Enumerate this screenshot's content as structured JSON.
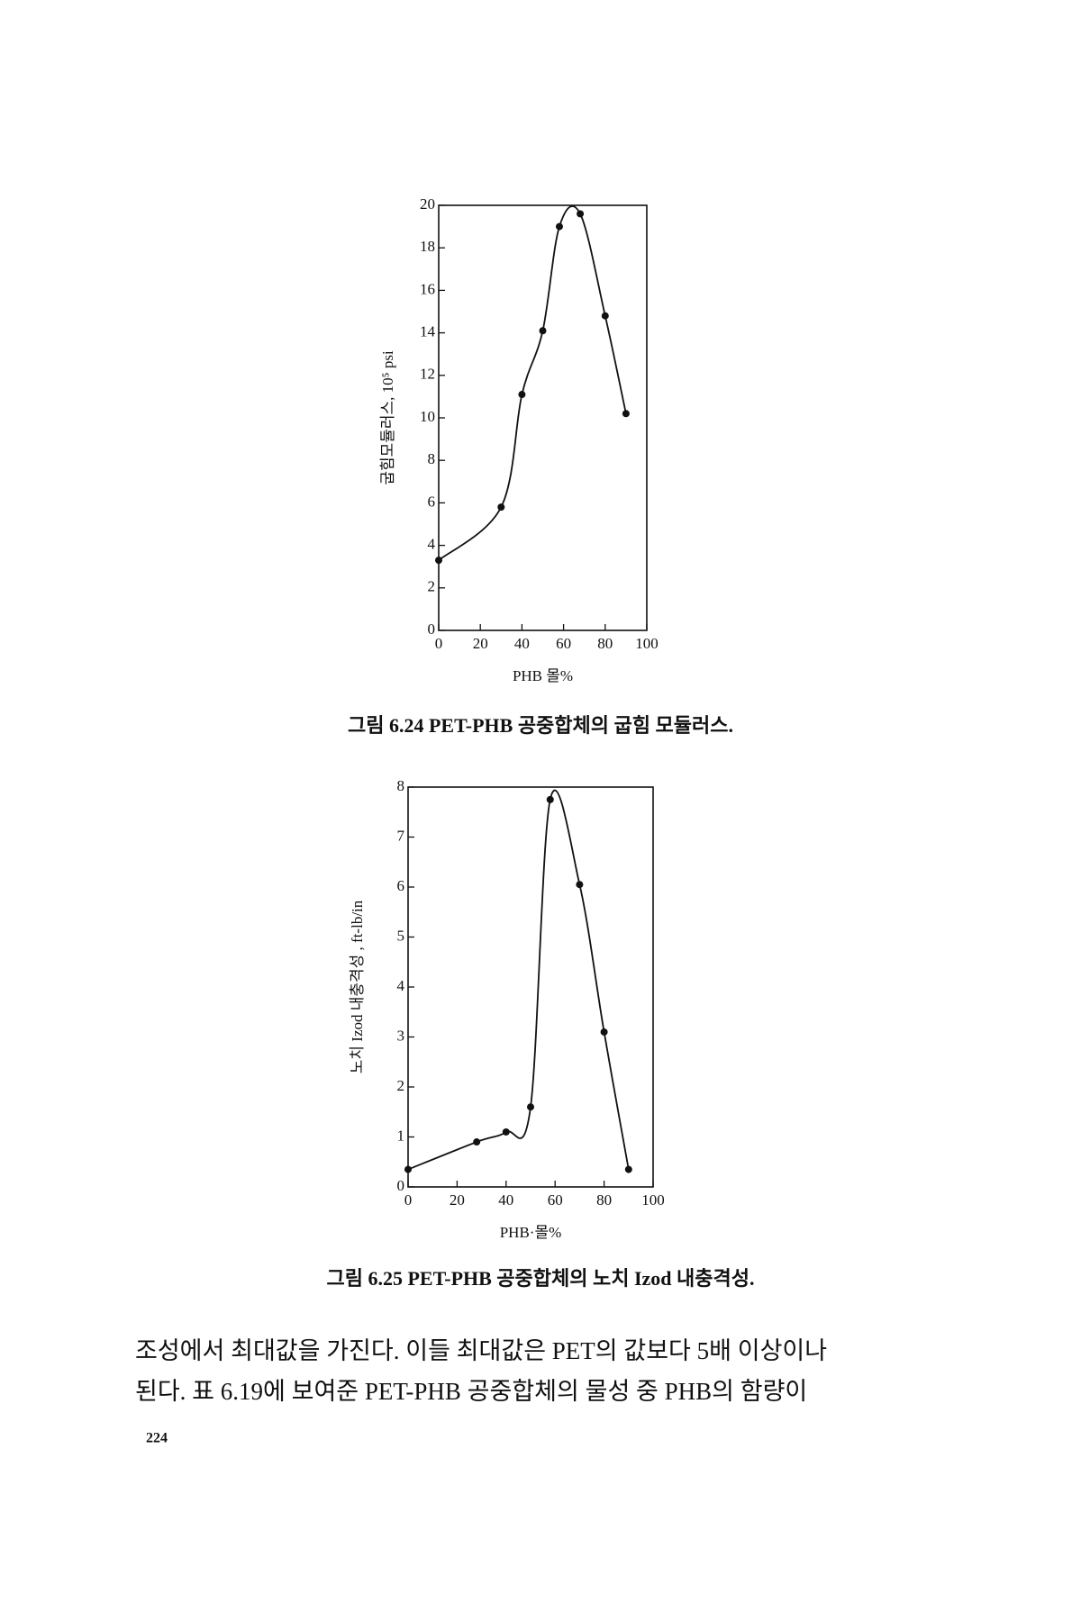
{
  "chart_data": [
    {
      "type": "line",
      "y_label": "굽힘모듈러스, 10⁵ psi",
      "x_label": "PHB 몰%",
      "caption": "그림 6.24  PET-PHB 공중합체의 굽힘 모듈러스.",
      "x": [
        0,
        30,
        40,
        50,
        58,
        68,
        80,
        90
      ],
      "values": [
        3.3,
        5.8,
        11.1,
        14.1,
        19.0,
        19.6,
        14.8,
        10.2
      ],
      "color": "#111111",
      "xlim": [
        0,
        100
      ],
      "ylim": [
        0,
        20
      ],
      "xticks": [
        0,
        20,
        40,
        60,
        80,
        100
      ],
      "yticks": [
        0,
        2,
        4,
        6,
        8,
        10,
        12,
        14,
        16,
        18,
        20
      ]
    },
    {
      "type": "line",
      "y_label": "노치 Izod 내충격성 , ft-lb/in",
      "x_label": "PHB·몰%",
      "caption": "그림 6.25  PET-PHB 공중합체의 노치 Izod 내충격성.",
      "x": [
        0,
        28,
        40,
        50,
        58,
        70,
        80,
        90
      ],
      "values": [
        0.35,
        0.9,
        1.1,
        1.6,
        7.75,
        6.05,
        3.1,
        0.35
      ],
      "color": "#111111",
      "xlim": [
        0,
        100
      ],
      "ylim": [
        0,
        8
      ],
      "xticks": [
        0,
        20,
        40,
        60,
        80,
        100
      ],
      "yticks": [
        0,
        1,
        2,
        3,
        4,
        5,
        6,
        7,
        8
      ]
    }
  ],
  "body": [
    "조성에서 최대값을 가진다. 이들 최대값은 PET의 값보다 5배 이상이나",
    "된다. 표 6.19에 보여준 PET-PHB 공중합체의 물성 중 PHB의 함량이"
  ],
  "page_number": "224"
}
